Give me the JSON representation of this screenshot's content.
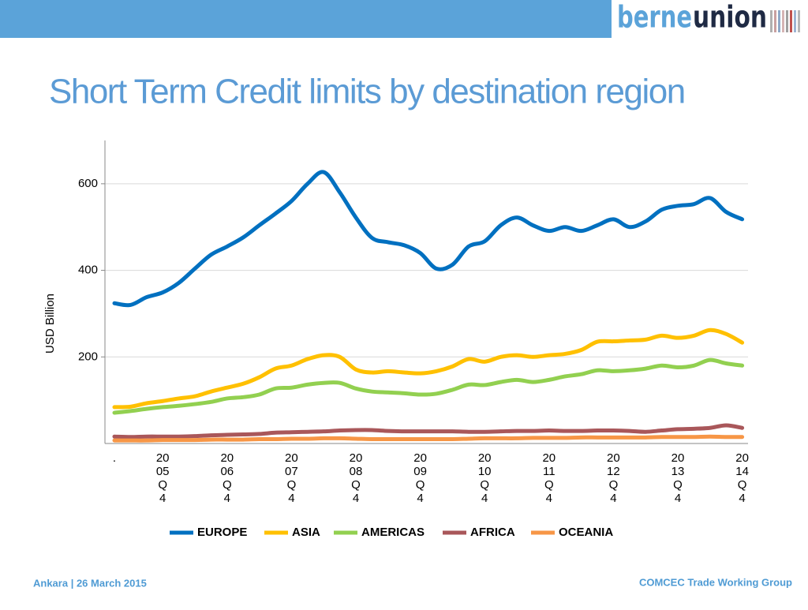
{
  "header": {
    "logo_left": "berne",
    "logo_right": "union"
  },
  "title": "Short Term Credit limits by destination region",
  "chart_data": {
    "type": "line",
    "y_label": "USD Billion",
    "categories": [
      ".",
      null,
      null,
      "2005Q4",
      null,
      null,
      null,
      "2006Q4",
      null,
      null,
      null,
      "2007Q4",
      null,
      null,
      null,
      "2008Q4",
      null,
      null,
      null,
      "2009Q4",
      null,
      null,
      null,
      "2010Q4",
      null,
      null,
      null,
      "2011Q4",
      null,
      null,
      null,
      "2012Q4",
      null,
      null,
      null,
      "2013Q4",
      null,
      null,
      null,
      "2014Q4"
    ],
    "ylim": [
      0,
      700
    ],
    "yticks": [
      200,
      400,
      600
    ],
    "grid": true,
    "legend": "bottom",
    "series": [
      {
        "name": "EUROPE",
        "color": "#0070c0",
        "values": [
          324,
          320,
          338,
          349,
          371,
          404,
          436,
          455,
          476,
          504,
          531,
          560,
          600,
          627,
          580,
          522,
          475,
          465,
          458,
          440,
          404,
          413,
          455,
          467,
          504,
          522,
          504,
          491,
          500,
          491,
          504,
          518,
          500,
          513,
          540,
          549,
          553,
          567,
          535,
          518
        ]
      },
      {
        "name": "ASIA",
        "color": "#ffc000",
        "values": [
          84,
          85,
          93,
          98,
          104,
          109,
          120,
          129,
          138,
          153,
          173,
          180,
          195,
          204,
          200,
          171,
          164,
          167,
          164,
          162,
          167,
          178,
          195,
          189,
          200,
          204,
          200,
          204,
          207,
          216,
          235,
          236,
          238,
          240,
          249,
          244,
          249,
          262,
          253,
          233
        ]
      },
      {
        "name": "AMERICAS",
        "color": "#92d050",
        "values": [
          71,
          75,
          80,
          84,
          87,
          91,
          96,
          104,
          107,
          113,
          127,
          129,
          136,
          140,
          140,
          127,
          120,
          118,
          116,
          113,
          115,
          124,
          136,
          135,
          142,
          147,
          142,
          147,
          155,
          160,
          169,
          167,
          169,
          173,
          180,
          176,
          180,
          193,
          185,
          180
        ]
      },
      {
        "name": "AFRICA",
        "color": "#a9575a",
        "values": [
          16,
          15,
          16,
          16,
          16,
          17,
          19,
          20,
          21,
          22,
          25,
          26,
          27,
          28,
          30,
          31,
          31,
          29,
          28,
          28,
          28,
          28,
          27,
          27,
          28,
          29,
          29,
          30,
          29,
          29,
          30,
          30,
          29,
          27,
          30,
          33,
          34,
          36,
          42,
          36
        ]
      },
      {
        "name": "OCEANIA",
        "color": "#f79646",
        "values": [
          7,
          7,
          7,
          8,
          8,
          8,
          9,
          9,
          9,
          10,
          10,
          11,
          11,
          12,
          12,
          11,
          10,
          10,
          10,
          10,
          10,
          10,
          11,
          12,
          12,
          12,
          13,
          13,
          13,
          14,
          14,
          14,
          14,
          14,
          15,
          15,
          15,
          16,
          15,
          15
        ]
      }
    ]
  },
  "footer": {
    "left": "Ankara | 26 March 2015",
    "right": "COMCEC Trade Working Group"
  }
}
